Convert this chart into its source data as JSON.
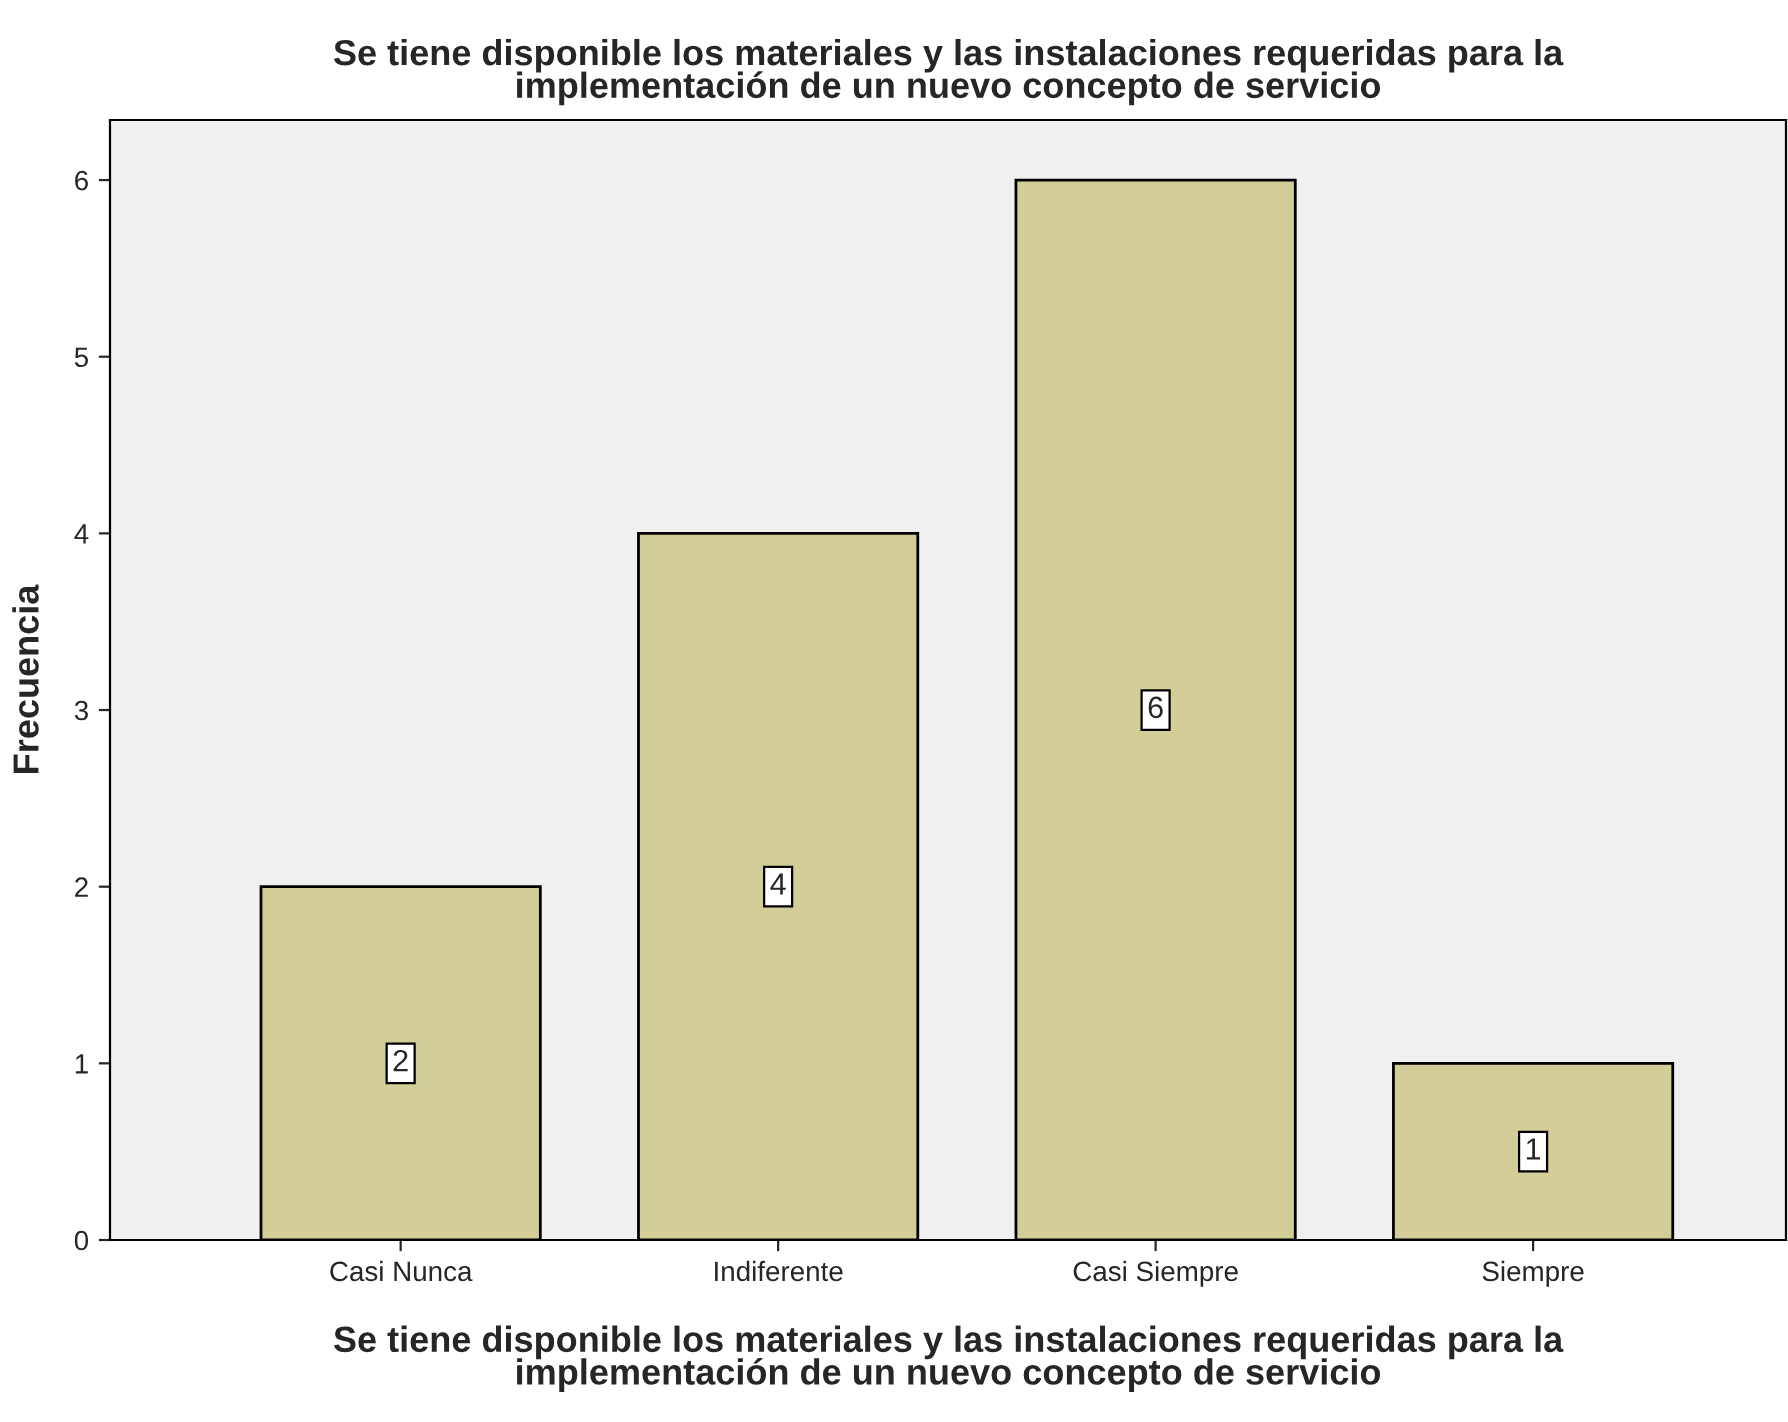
{
  "chart_data": {
    "type": "bar",
    "title": "Se tiene disponible los materiales y las instalaciones requeridas para la\nimplementación de un nuevo concepto de servicio",
    "xlabel": "Se tiene disponible los materiales y las instalaciones requeridas para la\nimplementación de un nuevo concepto de servicio",
    "ylabel": "Frecuencia",
    "categories": [
      "Casi Nunca",
      "Indiferente",
      "Casi Siempre",
      "Siempre"
    ],
    "values": [
      2,
      4,
      6,
      1
    ],
    "color": "#d3ce97",
    "ylim": [
      0,
      6.34
    ],
    "yticks": [
      0,
      1,
      2,
      3,
      4,
      5,
      6
    ],
    "data_labels": true,
    "grid": false
  }
}
